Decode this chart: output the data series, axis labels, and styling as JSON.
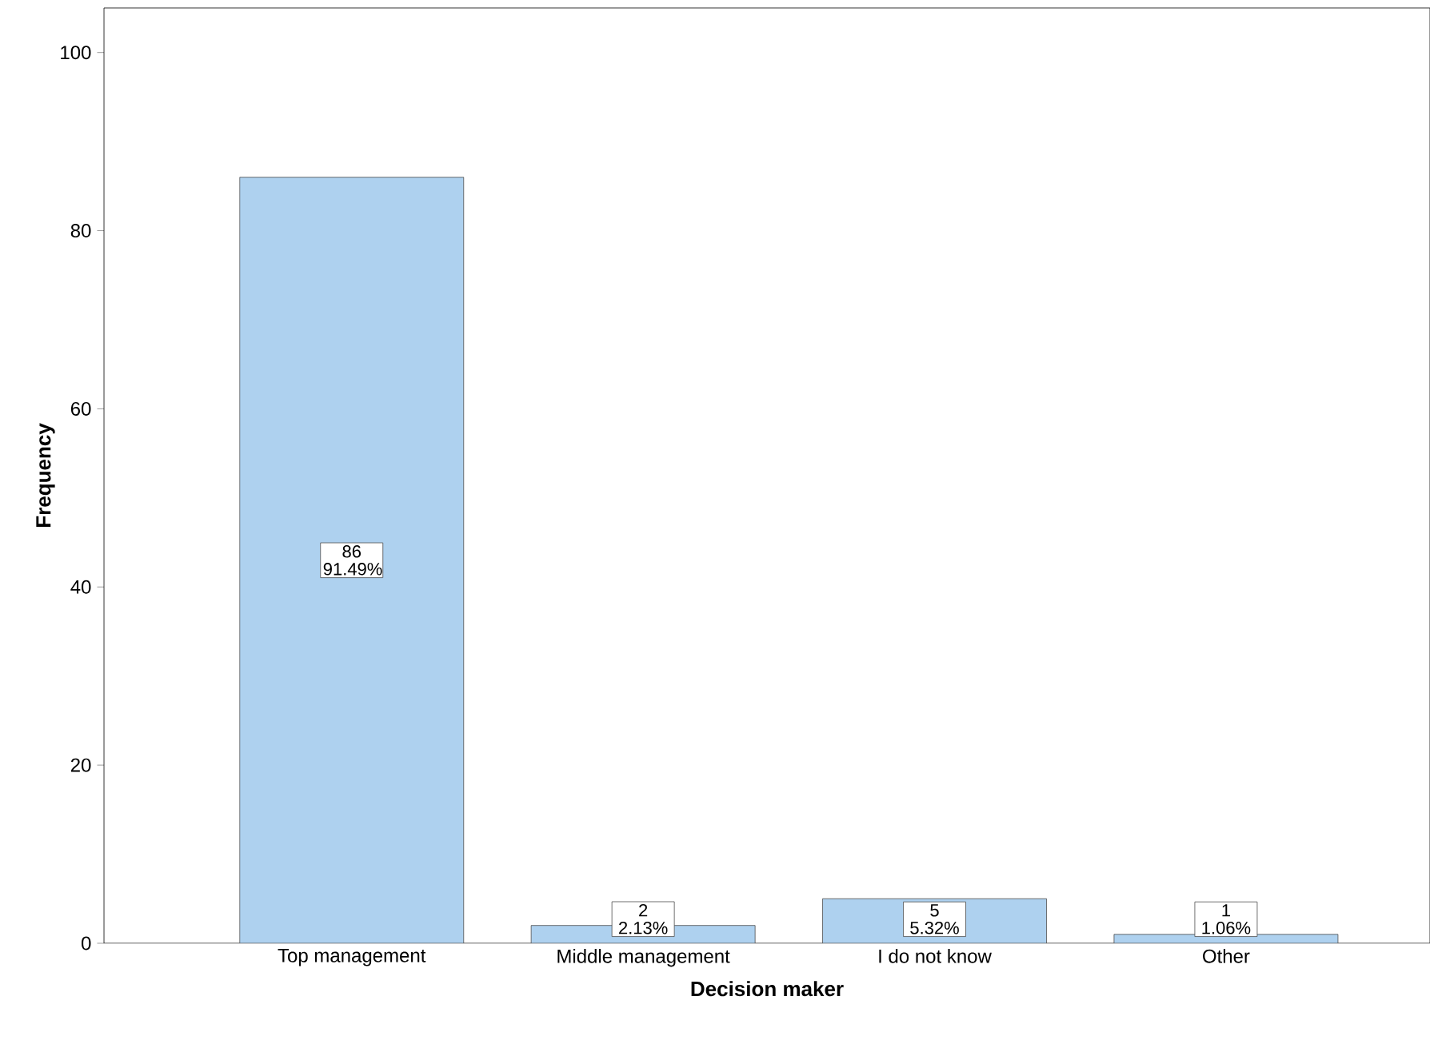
{
  "chart_data": {
    "type": "bar",
    "xlabel": "Decision maker",
    "ylabel": "Frequency",
    "categories": [
      "Top management",
      "Middle management",
      "I do not know",
      "Other"
    ],
    "values": [
      86,
      2,
      5,
      1
    ],
    "value_labels": [
      "86 91.49%",
      "2 2.13%",
      "5 5.32%",
      "1 1.06%"
    ],
    "color": "#aed1ef",
    "ylim": [
      0,
      105
    ],
    "yticks": [
      0,
      20,
      40,
      60,
      80,
      100
    ],
    "grid": false
  }
}
